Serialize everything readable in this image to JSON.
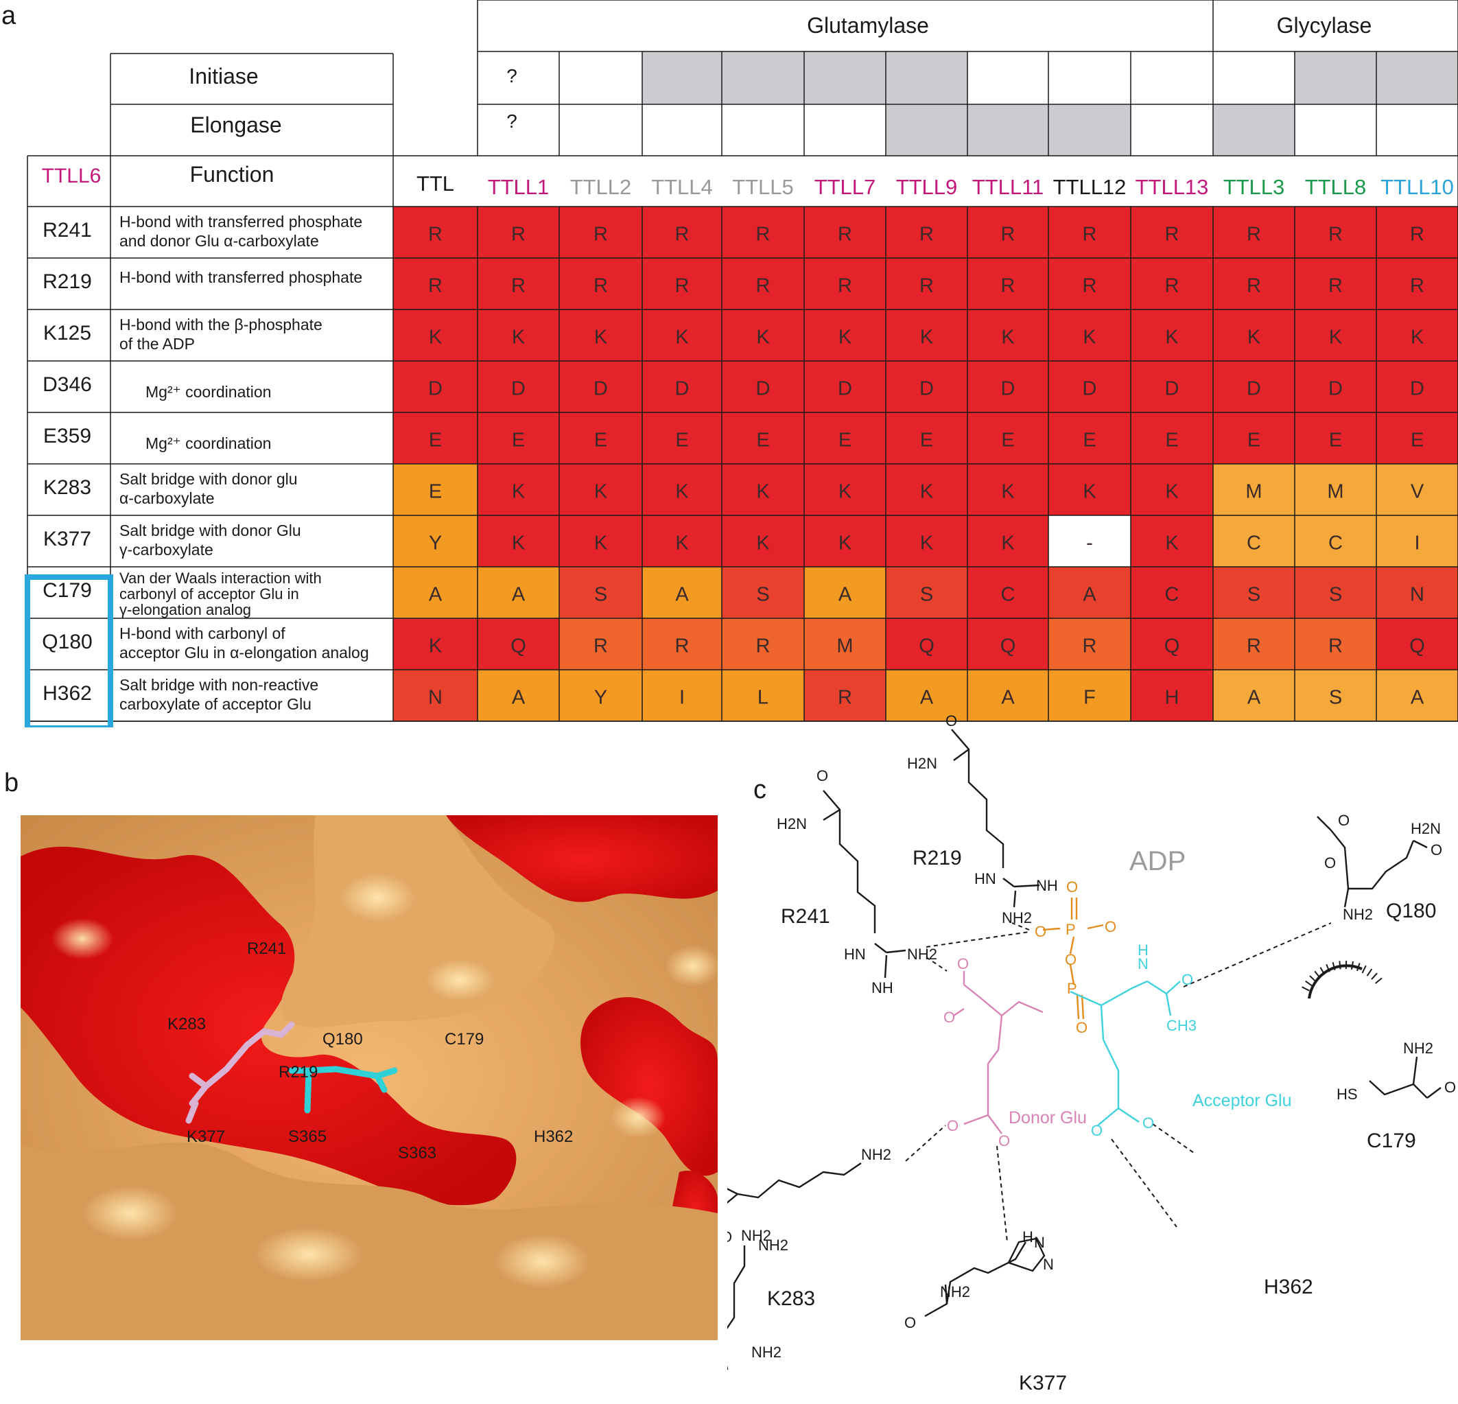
{
  "panels": {
    "a": "a",
    "b": "b",
    "c": "c"
  },
  "header": {
    "glutamylase": "Glutamylase",
    "glycylase": "Glycylase",
    "initiase": "Initiase",
    "elongase": "Elongase",
    "function": "Function",
    "ttll6": "TTLL6",
    "question": "?"
  },
  "columns": [
    {
      "name": "TTL",
      "color": "#1a1a1a"
    },
    {
      "name": "TTLL1",
      "color": "#c2187b"
    },
    {
      "name": "TTLL2",
      "color": "#999999"
    },
    {
      "name": "TTLL4",
      "color": "#999999"
    },
    {
      "name": "TTLL5",
      "color": "#999999"
    },
    {
      "name": "TTLL7",
      "color": "#c2187b"
    },
    {
      "name": "TTLL9",
      "color": "#c2187b"
    },
    {
      "name": "TTLL11",
      "color": "#c2187b"
    },
    {
      "name": "TTLL12",
      "color": "#1a1a1a"
    },
    {
      "name": "TTLL13",
      "color": "#c2187b"
    },
    {
      "name": "TTLL3",
      "color": "#1a9a4a"
    },
    {
      "name": "TTLL8",
      "color": "#1a9a4a"
    },
    {
      "name": "TTLL10",
      "color": "#2aa4d8"
    }
  ],
  "initiase_gray": [
    false,
    true,
    true,
    true,
    true,
    false,
    false,
    false,
    false,
    true,
    true,
    false
  ],
  "elongase_gray": [
    false,
    false,
    false,
    false,
    true,
    true,
    true,
    false,
    true,
    false,
    false,
    true
  ],
  "colors": {
    "red": "#e5232b",
    "redorange": "#e8422f",
    "orange": "#f0652e",
    "amber": "#f39a23",
    "lightamber": "#f5a93a",
    "white": "#ffffff",
    "gray": "#cacccf",
    "highlight": "#2aa7df"
  },
  "rows": [
    {
      "res": "R241",
      "func": [
        "H-bond with transferred phosphate",
        "and donor Glu α-carboxylate"
      ],
      "cells": [
        "R",
        "R",
        "R",
        "R",
        "R",
        "R",
        "R",
        "R",
        "R",
        "R",
        "R",
        "R",
        "R"
      ],
      "colors": [
        "red",
        "red",
        "red",
        "red",
        "red",
        "red",
        "red",
        "red",
        "red",
        "red",
        "red",
        "red",
        "red"
      ]
    },
    {
      "res": "R219",
      "func": [
        "H-bond with transferred phosphate"
      ],
      "cells": [
        "R",
        "R",
        "R",
        "R",
        "R",
        "R",
        "R",
        "R",
        "R",
        "R",
        "R",
        "R",
        "R"
      ],
      "colors": [
        "red",
        "red",
        "red",
        "red",
        "red",
        "red",
        "red",
        "red",
        "red",
        "red",
        "red",
        "red",
        "red"
      ]
    },
    {
      "res": "K125",
      "func": [
        "H-bond with the β-phosphate",
        " of the  ADP"
      ],
      "cells": [
        "K",
        "K",
        "K",
        "K",
        "K",
        "K",
        "K",
        "K",
        "K",
        "K",
        "K",
        "K",
        "K"
      ],
      "colors": [
        "red",
        "red",
        "red",
        "red",
        "red",
        "red",
        "red",
        "red",
        "red",
        "red",
        "red",
        "red",
        "red"
      ]
    },
    {
      "res": "D346",
      "func": [
        "Mg²⁺ coordination"
      ],
      "indent": true,
      "cells": [
        "D",
        "D",
        "D",
        "D",
        "D",
        "D",
        "D",
        "D",
        "D",
        "D",
        "D",
        "D",
        "D"
      ],
      "colors": [
        "red",
        "red",
        "red",
        "red",
        "red",
        "red",
        "red",
        "red",
        "red",
        "red",
        "red",
        "red",
        "red"
      ]
    },
    {
      "res": "E359",
      "func": [
        "Mg²⁺ coordination"
      ],
      "indent": true,
      "cells": [
        "E",
        "E",
        "E",
        "E",
        "E",
        "E",
        "E",
        "E",
        "E",
        "E",
        "E",
        "E",
        "E"
      ],
      "colors": [
        "red",
        "red",
        "red",
        "red",
        "red",
        "red",
        "red",
        "red",
        "red",
        "red",
        "red",
        "red",
        "red"
      ]
    },
    {
      "res": "K283",
      "func": [
        "Salt bridge with donor glu",
        "α-carboxylate"
      ],
      "cells": [
        "E",
        "K",
        "K",
        "K",
        "K",
        "K",
        "K",
        "K",
        "K",
        "K",
        "M",
        "M",
        "V"
      ],
      "colors": [
        "amber",
        "red",
        "red",
        "red",
        "red",
        "red",
        "red",
        "red",
        "red",
        "red",
        "lightamber",
        "lightamber",
        "lightamber"
      ]
    },
    {
      "res": "K377",
      "func": [
        "Salt bridge with donor Glu",
        "γ-carboxylate"
      ],
      "cells": [
        "Y",
        "K",
        "K",
        "K",
        "K",
        "K",
        "K",
        "K",
        "-",
        "K",
        "C",
        "C",
        "I"
      ],
      "colors": [
        "amber",
        "red",
        "red",
        "red",
        "red",
        "red",
        "red",
        "red",
        "white",
        "red",
        "lightamber",
        "lightamber",
        "lightamber"
      ]
    },
    {
      "res": "C179",
      "func": [
        "Van der Waals interaction with",
        "carbonyl of acceptor Glu in",
        "γ-elongation analog"
      ],
      "cells": [
        "A",
        "A",
        "S",
        "A",
        "S",
        "A",
        "S",
        "C",
        "A",
        "C",
        "S",
        "S",
        "N"
      ],
      "colors": [
        "amber",
        "amber",
        "redorange",
        "amber",
        "redorange",
        "amber",
        "redorange",
        "red",
        "redorange",
        "red",
        "redorange",
        "redorange",
        "redorange"
      ]
    },
    {
      "res": "Q180",
      "func": [
        "H-bond with carbonyl  of",
        "acceptor Glu in  α-elongation analog"
      ],
      "cells": [
        "K",
        "Q",
        "R",
        "R",
        "R",
        "M",
        "Q",
        "Q",
        "R",
        "Q",
        "R",
        "R",
        "Q"
      ],
      "colors": [
        "red",
        "red",
        "orange",
        "orange",
        "orange",
        "orange",
        "red",
        "red",
        "orange",
        "red",
        "orange",
        "orange",
        "red"
      ]
    },
    {
      "res": "H362",
      "func": [
        "Salt bridge with non-reactive",
        "carboxylate of acceptor Glu"
      ],
      "cells": [
        "N",
        "A",
        "Y",
        "I",
        "L",
        "R",
        "A",
        "A",
        "F",
        "H",
        "A",
        "S",
        "A"
      ],
      "colors": [
        "redorange",
        "amber",
        "amber",
        "amber",
        "amber",
        "redorange",
        "amber",
        "amber",
        "amber",
        "red",
        "lightamber",
        "lightamber",
        "lightamber"
      ]
    }
  ],
  "panel_b_labels": [
    {
      "text": "R241"
    },
    {
      "text": "K283"
    },
    {
      "text": "Q180"
    },
    {
      "text": "C179"
    },
    {
      "text": "R219"
    },
    {
      "text": "K377"
    },
    {
      "text": "S365"
    },
    {
      "text": "S363"
    },
    {
      "text": "H362"
    }
  ],
  "panel_c": {
    "adp": "ADP",
    "donor": "Donor Glu",
    "acceptor": "Acceptor Glu",
    "residues": [
      "R219",
      "R241",
      "Q180",
      "C179",
      "K283",
      "K377",
      "H362"
    ]
  }
}
